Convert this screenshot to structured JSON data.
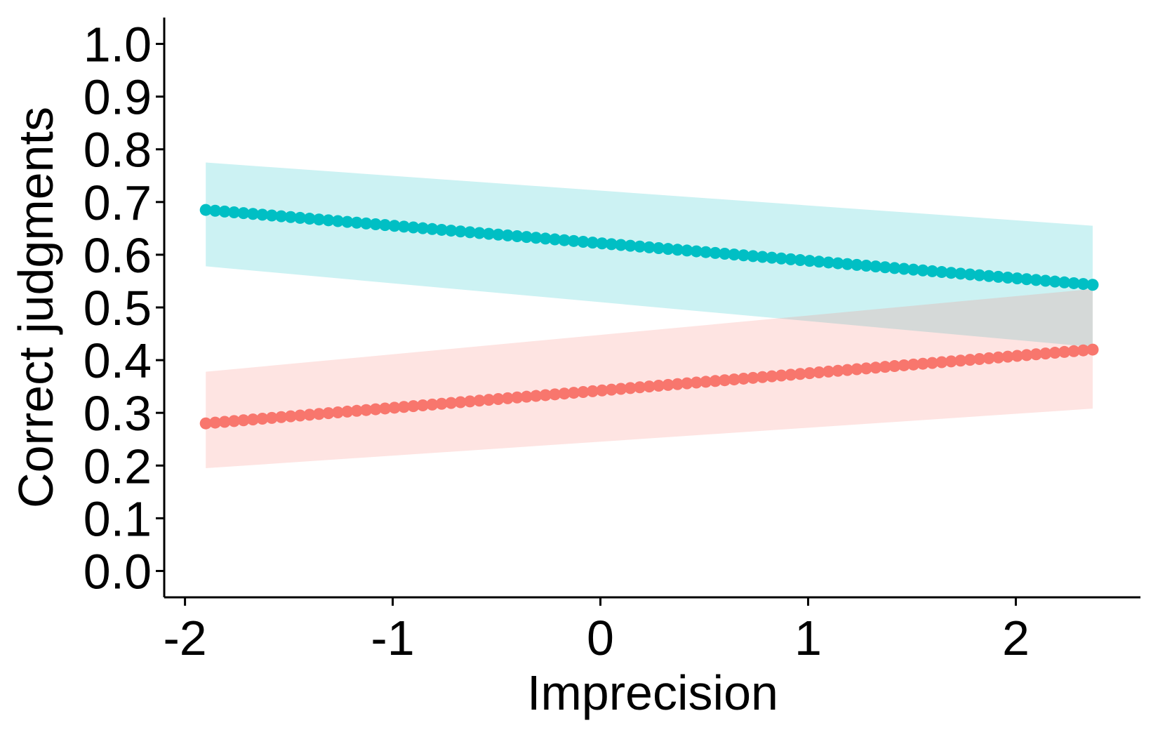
{
  "chart_data": {
    "type": "line",
    "xlabel": "Imprecision",
    "ylabel": "Correct judgments",
    "xlim": [
      -2.1,
      2.6
    ],
    "ylim": [
      -0.05,
      1.05
    ],
    "x_ticks": [
      -2,
      -1,
      0,
      1,
      2
    ],
    "x_tick_labels": [
      "-2",
      "-1",
      "0",
      "1",
      "2"
    ],
    "y_ticks": [
      0.0,
      0.1,
      0.2,
      0.3,
      0.4,
      0.5,
      0.6,
      0.7,
      0.8,
      0.9,
      1.0
    ],
    "y_tick_labels": [
      "0.0",
      "0.1",
      "0.2",
      "0.3",
      "0.4",
      "0.5",
      "0.6",
      "0.7",
      "0.8",
      "0.9",
      "1.0"
    ],
    "grid": false,
    "legend": "none",
    "series": [
      {
        "color": "#00BFC4",
        "ribbon_color": "#00BFC4",
        "x_start": -1.9,
        "x_end": 2.37,
        "fit_start": 0.685,
        "fit_end": 0.543,
        "ci_lower_start": 0.578,
        "ci_lower_end": 0.425,
        "ci_upper_start": 0.775,
        "ci_upper_end": 0.655,
        "point_count": 95
      },
      {
        "color": "#F8766D",
        "ribbon_color": "#F8766D",
        "x_start": -1.9,
        "x_end": 2.37,
        "fit_start": 0.28,
        "fit_end": 0.42,
        "ci_lower_start": 0.195,
        "ci_lower_end": 0.308,
        "ci_upper_start": 0.378,
        "ci_upper_end": 0.535,
        "point_count": 95
      }
    ]
  }
}
